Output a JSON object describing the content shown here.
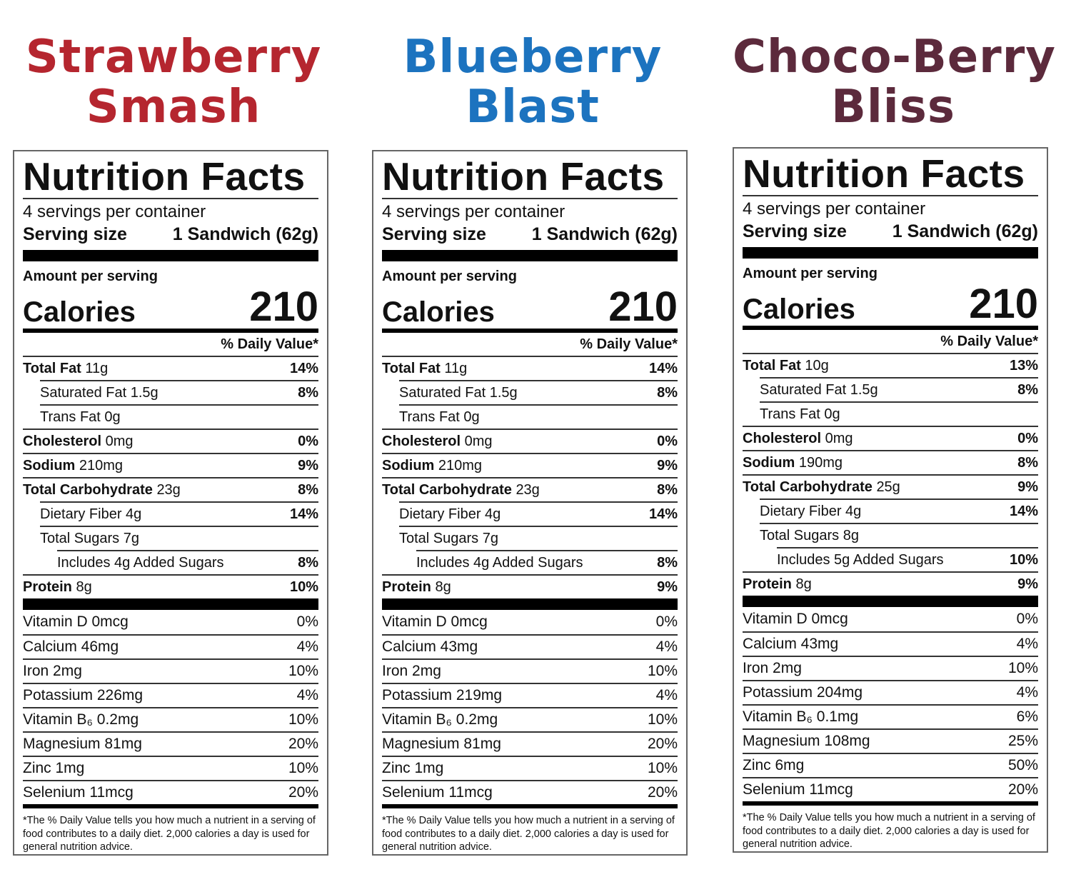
{
  "products": [
    {
      "title_line1": "Strawberry",
      "title_line2": "Smash",
      "title_color": "#b5262f",
      "label": {
        "heading": "Nutrition Facts",
        "servings": "4 servings per container",
        "serving_size_label": "Serving size",
        "serving_size_value": "1 Sandwich (62g)",
        "amount_per_serving": "Amount per serving",
        "calories_label": "Calories",
        "calories_value": "210",
        "dv_header": "% Daily Value*",
        "total_fat": {
          "name": "Total Fat",
          "amount": "11g",
          "dv": "14%"
        },
        "saturated_fat": {
          "name": "Saturated Fat 1.5g",
          "dv": "8%"
        },
        "trans_fat": {
          "name": "Trans Fat 0g"
        },
        "cholesterol": {
          "name": "Cholesterol",
          "amount": "0mg",
          "dv": "0%"
        },
        "sodium": {
          "name": "Sodium",
          "amount": "210mg",
          "dv": "9%"
        },
        "total_carb": {
          "name": "Total Carbohydrate",
          "amount": "23g",
          "dv": "8%"
        },
        "fiber": {
          "name": "Dietary Fiber 4g",
          "dv": "14%"
        },
        "sugars": {
          "name": "Total Sugars 7g"
        },
        "added_sugars": {
          "name": "Includes 4g Added Sugars",
          "dv": "8%"
        },
        "protein": {
          "name": "Protein",
          "amount": "8g",
          "dv": "10%"
        },
        "vitamins": [
          {
            "name": "Vitamin D 0mcg",
            "dv": "0%"
          },
          {
            "name": "Calcium 46mg",
            "dv": "4%"
          },
          {
            "name": "Iron 2mg",
            "dv": "10%"
          },
          {
            "name": "Potassium 226mg",
            "dv": "4%"
          },
          {
            "name": "Vitamin B₆ 0.2mg",
            "dv": "10%"
          },
          {
            "name": "Magnesium 81mg",
            "dv": "20%"
          },
          {
            "name": "Zinc 1mg",
            "dv": "10%"
          },
          {
            "name": "Selenium 11mcg",
            "dv": "20%"
          }
        ],
        "footnote": "*The % Daily Value tells you how much a nutrient in a serving of food contributes to a daily diet. 2,000 calories a day is used for general nutrition advice."
      }
    },
    {
      "title_line1": "Blueberry",
      "title_line2": "Blast",
      "title_color": "#1c73bf",
      "label": {
        "heading": "Nutrition Facts",
        "servings": "4 servings per container",
        "serving_size_label": "Serving size",
        "serving_size_value": "1 Sandwich (62g)",
        "amount_per_serving": "Amount per serving",
        "calories_label": "Calories",
        "calories_value": "210",
        "dv_header": "% Daily Value*",
        "total_fat": {
          "name": "Total Fat",
          "amount": "11g",
          "dv": "14%"
        },
        "saturated_fat": {
          "name": "Saturated Fat 1.5g",
          "dv": "8%"
        },
        "trans_fat": {
          "name": "Trans Fat 0g"
        },
        "cholesterol": {
          "name": "Cholesterol",
          "amount": "0mg",
          "dv": "0%"
        },
        "sodium": {
          "name": "Sodium",
          "amount": "210mg",
          "dv": "9%"
        },
        "total_carb": {
          "name": "Total Carbohydrate",
          "amount": "23g",
          "dv": "8%"
        },
        "fiber": {
          "name": "Dietary Fiber 4g",
          "dv": "14%"
        },
        "sugars": {
          "name": "Total Sugars 7g"
        },
        "added_sugars": {
          "name": "Includes 4g Added Sugars",
          "dv": "8%"
        },
        "protein": {
          "name": "Protein",
          "amount": "8g",
          "dv": "9%"
        },
        "vitamins": [
          {
            "name": "Vitamin D 0mcg",
            "dv": "0%"
          },
          {
            "name": "Calcium 43mg",
            "dv": "4%"
          },
          {
            "name": "Iron 2mg",
            "dv": "10%"
          },
          {
            "name": "Potassium 219mg",
            "dv": "4%"
          },
          {
            "name": "Vitamin B₆ 0.2mg",
            "dv": "10%"
          },
          {
            "name": "Magnesium 81mg",
            "dv": "20%"
          },
          {
            "name": "Zinc 1mg",
            "dv": "10%"
          },
          {
            "name": "Selenium 11mcg",
            "dv": "20%"
          }
        ],
        "footnote": "*The % Daily Value tells you how much a nutrient in a serving of food contributes to a daily diet. 2,000 calories a day is used for general nutrition advice."
      }
    },
    {
      "title_line1": "Choco-Berry",
      "title_line2": "Bliss",
      "title_color": "#5c2a3c",
      "label": {
        "heading": "Nutrition Facts",
        "servings": "4 servings per container",
        "serving_size_label": "Serving size",
        "serving_size_value": "1 Sandwich (62g)",
        "amount_per_serving": "Amount per serving",
        "calories_label": "Calories",
        "calories_value": "210",
        "dv_header": "% Daily Value*",
        "total_fat": {
          "name": "Total Fat",
          "amount": "10g",
          "dv": "13%"
        },
        "saturated_fat": {
          "name": "Saturated Fat 1.5g",
          "dv": "8%"
        },
        "trans_fat": {
          "name": "Trans Fat 0g"
        },
        "cholesterol": {
          "name": "Cholesterol",
          "amount": "0mg",
          "dv": "0%"
        },
        "sodium": {
          "name": "Sodium",
          "amount": "190mg",
          "dv": "8%"
        },
        "total_carb": {
          "name": "Total Carbohydrate",
          "amount": "25g",
          "dv": "9%"
        },
        "fiber": {
          "name": "Dietary Fiber 4g",
          "dv": "14%"
        },
        "sugars": {
          "name": "Total Sugars 8g"
        },
        "added_sugars": {
          "name": "Includes 5g Added Sugars",
          "dv": "10%"
        },
        "protein": {
          "name": "Protein",
          "amount": "8g",
          "dv": "9%"
        },
        "vitamins": [
          {
            "name": "Vitamin D 0mcg",
            "dv": "0%"
          },
          {
            "name": "Calcium 43mg",
            "dv": "4%"
          },
          {
            "name": "Iron 2mg",
            "dv": "10%"
          },
          {
            "name": "Potassium 204mg",
            "dv": "4%"
          },
          {
            "name": "Vitamin B₆ 0.1mg",
            "dv": "6%"
          },
          {
            "name": "Magnesium 108mg",
            "dv": "25%"
          },
          {
            "name": "Zinc 6mg",
            "dv": "50%"
          },
          {
            "name": "Selenium 11mcg",
            "dv": "20%"
          }
        ],
        "footnote": "*The % Daily Value tells you how much a nutrient in a serving of food contributes to a daily diet. 2,000 calories a day is used for general nutrition advice."
      }
    }
  ]
}
